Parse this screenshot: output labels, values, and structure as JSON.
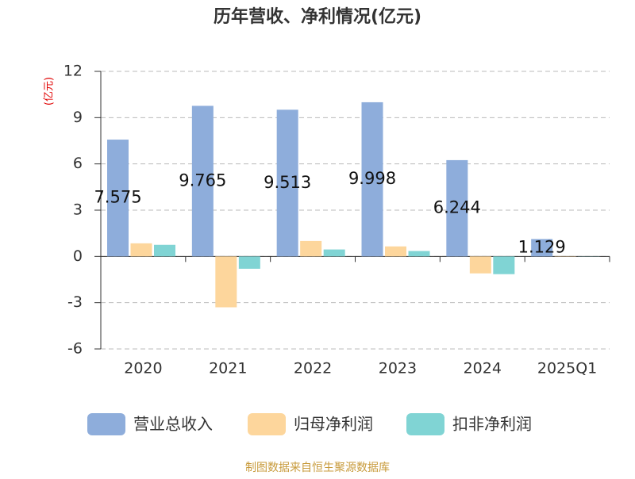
{
  "chart_data": {
    "type": "bar",
    "title": "历年营收、净利情况(亿元)",
    "y_label": "(亿元)",
    "categories": [
      "2020",
      "2021",
      "2022",
      "2023",
      "2024",
      "2025Q1"
    ],
    "series": [
      {
        "name": "营业总收入",
        "color": "#8eaddb",
        "values": [
          7.575,
          9.765,
          9.513,
          9.998,
          6.244,
          1.129
        ]
      },
      {
        "name": "归母净利润",
        "color": "#fdd69c",
        "values": [
          0.85,
          -3.3,
          1.0,
          0.65,
          -1.1,
          0.02
        ]
      },
      {
        "name": "扣非净利润",
        "color": "#80d4d4",
        "values": [
          0.75,
          -0.8,
          0.45,
          0.35,
          -1.15,
          0.01
        ]
      }
    ],
    "value_label_series": 0,
    "ylim": [
      -6,
      12
    ],
    "yticks": [
      -6,
      -3,
      0,
      3,
      6,
      9,
      12
    ],
    "grid": true,
    "source": "制图数据来自恒生聚源数据库"
  }
}
